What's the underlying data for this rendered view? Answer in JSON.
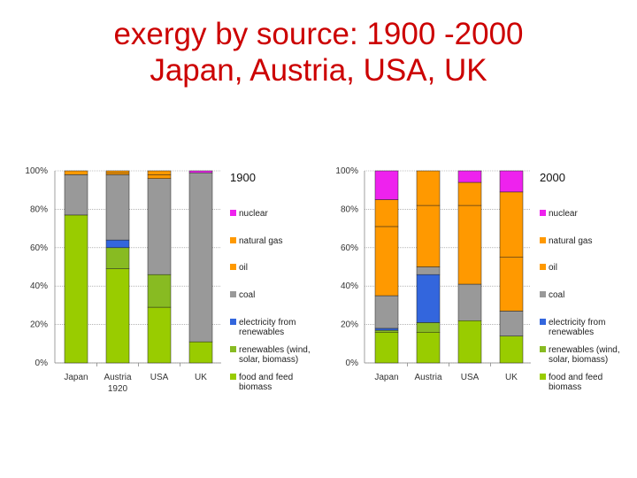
{
  "slide": {
    "title_line1": "exergy by source: 1900 -2000",
    "title_line2": "Japan, Austria, USA, UK"
  },
  "colors": {
    "food_and_feed_biomass": "#99cc00",
    "renewables": "#88bb22",
    "electricity_from_renewables": "#3366dd",
    "coal": "#999999",
    "oil": "#ff9900",
    "natural_gas": "#ff9900",
    "nuclear": "#ee22ee"
  },
  "chart_data": [
    {
      "type": "bar",
      "stacked": true,
      "title": "1900",
      "categories": [
        "Japan",
        "Austria",
        "USA",
        "UK"
      ],
      "category_sublabels": [
        "",
        "1920",
        "",
        ""
      ],
      "ylim": [
        0,
        100
      ],
      "y_ticks": [
        "0%",
        "20%",
        "40%",
        "60%",
        "80%",
        "100%"
      ],
      "series": [
        {
          "name": "food and feed biomass",
          "key": "food_and_feed_biomass",
          "values": [
            77,
            49,
            29,
            11
          ]
        },
        {
          "name": "renewables (wind, solar, biomass)",
          "key": "renewables",
          "values": [
            0,
            11,
            17,
            0
          ]
        },
        {
          "name": "electricity from renewables",
          "key": "electricity_from_renewables",
          "values": [
            0,
            4,
            0,
            0
          ]
        },
        {
          "name": "coal",
          "key": "coal",
          "values": [
            21,
            34,
            50,
            88
          ]
        },
        {
          "name": "oil",
          "key": "oil",
          "values": [
            2,
            1,
            2,
            0
          ]
        },
        {
          "name": "natural gas",
          "key": "natural_gas",
          "values": [
            0,
            1,
            2,
            0
          ]
        },
        {
          "name": "nuclear",
          "key": "nuclear",
          "values": [
            0,
            0,
            0,
            1
          ]
        }
      ],
      "legend": [
        {
          "label": "nuclear",
          "key": "nuclear"
        },
        {
          "label": "natural gas",
          "key": "natural_gas"
        },
        {
          "label": "oil",
          "key": "oil"
        },
        {
          "label": "coal",
          "key": "coal"
        },
        {
          "label": "electricity from renewables",
          "key": "electricity_from_renewables"
        },
        {
          "label": "renewables (wind, solar, biomass)",
          "key": "renewables"
        },
        {
          "label": "food and feed biomass",
          "key": "food_and_feed_biomass"
        }
      ]
    },
    {
      "type": "bar",
      "stacked": true,
      "title": "2000",
      "categories": [
        "Japan",
        "Austria",
        "USA",
        "UK"
      ],
      "category_sublabels": [
        "",
        "",
        "",
        ""
      ],
      "ylim": [
        0,
        100
      ],
      "y_ticks": [
        "0%",
        "20%",
        "40%",
        "60%",
        "80%",
        "100%"
      ],
      "series": [
        {
          "name": "food and feed biomass",
          "key": "food_and_feed_biomass",
          "values": [
            16,
            16,
            22,
            14
          ]
        },
        {
          "name": "renewables (wind, solar, biomass)",
          "key": "renewables",
          "values": [
            1,
            5,
            0,
            0
          ]
        },
        {
          "name": "electricity from renewables",
          "key": "electricity_from_renewables",
          "values": [
            1,
            25,
            0,
            0
          ]
        },
        {
          "name": "coal",
          "key": "coal",
          "values": [
            17,
            4,
            19,
            13
          ]
        },
        {
          "name": "oil",
          "key": "oil",
          "values": [
            36,
            32,
            41,
            28
          ]
        },
        {
          "name": "natural gas",
          "key": "natural_gas",
          "values": [
            14,
            18,
            12,
            34
          ]
        },
        {
          "name": "nuclear",
          "key": "nuclear",
          "values": [
            15,
            0,
            6,
            11
          ]
        }
      ],
      "legend": [
        {
          "label": "nuclear",
          "key": "nuclear"
        },
        {
          "label": "natural gas",
          "key": "natural_gas"
        },
        {
          "label": "oil",
          "key": "oil"
        },
        {
          "label": "coal",
          "key": "coal"
        },
        {
          "label": "electricity from renewables",
          "key": "electricity_from_renewables"
        },
        {
          "label": "renewables (wind, solar, biomass)",
          "key": "renewables"
        },
        {
          "label": "food and feed biomass",
          "key": "food_and_feed_biomass"
        }
      ]
    }
  ]
}
